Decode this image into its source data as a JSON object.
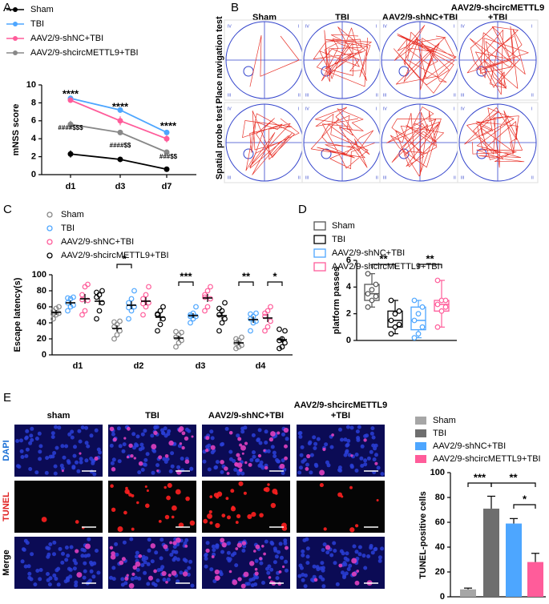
{
  "chart_data": [
    {
      "type": "line",
      "panel": "A",
      "ylabel": "mNSS score",
      "categories": [
        "d1",
        "d3",
        "d7"
      ],
      "ylim": [
        0,
        10
      ],
      "yticks": [
        0,
        2,
        4,
        6,
        8,
        10
      ],
      "series": [
        {
          "name": "Sham",
          "color": "#000000",
          "values": [
            2.3,
            1.7,
            0.6
          ],
          "errors": [
            0.4,
            0.2,
            0.15
          ]
        },
        {
          "name": "TBI",
          "color": "#4da6ff",
          "values": [
            8.5,
            7.2,
            4.7
          ],
          "errors": [
            0.3,
            0.3,
            0.3
          ]
        },
        {
          "name": "AAV2/9-shNC+TBI",
          "color": "#ff5c9a",
          "values": [
            8.3,
            6.0,
            4.0
          ],
          "errors": [
            0.3,
            0.5,
            0.4
          ]
        },
        {
          "name": "AAV2/9-shcircMETTL9+TBI",
          "color": "#888888",
          "values": [
            5.6,
            4.7,
            2.5
          ],
          "errors": [
            0.4,
            0.3,
            0.2
          ]
        }
      ],
      "annotations": [
        "****",
        "****",
        "****",
        "####$$$",
        "####$$",
        "###$$"
      ]
    },
    {
      "type": "dotplot",
      "panel": "C",
      "ylabel": "Escape latency(s)",
      "categories": [
        "d1",
        "d2",
        "d3",
        "d4"
      ],
      "ylim": [
        0,
        100
      ],
      "yticks": [
        0,
        20,
        40,
        60,
        80,
        100
      ],
      "series": [
        {
          "name": "Sham",
          "color": "#888888",
          "values": [
            53,
            33,
            21,
            15
          ],
          "errors": [
            3,
            4,
            3,
            3
          ],
          "points": [
            [
              45,
              50,
              52,
              55,
              58,
              60,
              51
            ],
            [
              20,
              25,
              30,
              35,
              38,
              42,
              41
            ],
            [
              10,
              15,
              18,
              22,
              25,
              28,
              29
            ],
            [
              8,
              10,
              12,
              15,
              18,
              22,
              20
            ]
          ]
        },
        {
          "name": "TBI",
          "color": "#4da6ff",
          "values": [
            65,
            62,
            49,
            44
          ],
          "errors": [
            3,
            5,
            3,
            4
          ],
          "points": [
            [
              55,
              60,
              62,
              65,
              70,
              72,
              71
            ],
            [
              45,
              55,
              60,
              65,
              70,
              80,
              59
            ],
            [
              40,
              45,
              48,
              50,
              52,
              60,
              48
            ],
            [
              30,
              40,
              42,
              45,
              48,
              52,
              51
            ]
          ]
        },
        {
          "name": "AAV2/9-shNC+TBI",
          "color": "#ff5c9a",
          "values": [
            70,
            67,
            71,
            46
          ],
          "errors": [
            6,
            5,
            5,
            5
          ],
          "points": [
            [
              50,
              55,
              68,
              75,
              85,
              88,
              69
            ],
            [
              50,
              60,
              65,
              70,
              75,
              85,
              64
            ],
            [
              55,
              60,
              70,
              75,
              80,
              85,
              72
            ],
            [
              30,
              35,
              42,
              48,
              55,
              60,
              52
            ]
          ]
        },
        {
          "name": "AAV2/9-shcircMETTL9+TBI",
          "color": "#000000",
          "values": [
            67,
            47,
            49,
            19
          ],
          "errors": [
            5,
            5,
            5,
            4
          ],
          "points": [
            [
              45,
              55,
              65,
              72,
              75,
              80,
              78
            ],
            [
              30,
              38,
              45,
              50,
              55,
              60,
              51
            ],
            [
              30,
              40,
              45,
              50,
              55,
              65,
              58
            ],
            [
              8,
              10,
              15,
              18,
              20,
              30,
              32
            ]
          ]
        }
      ],
      "annotations": [
        "*",
        "***",
        "**",
        "*"
      ]
    },
    {
      "type": "box",
      "panel": "D",
      "ylabel": "platform passes",
      "ylim": [
        0,
        6
      ],
      "yticks": [
        0,
        2,
        4,
        6
      ],
      "series": [
        {
          "name": "Sham",
          "color": "#555555",
          "min": 2.5,
          "q1": 3,
          "median": 3.5,
          "q3": 4.2,
          "max": 5,
          "points": [
            2.5,
            3,
            3.3,
            3.5,
            3.8,
            4.2,
            5
          ]
        },
        {
          "name": "TBI",
          "color": "#000000",
          "min": 0.5,
          "q1": 1,
          "median": 1.5,
          "q3": 2.2,
          "max": 3,
          "points": [
            0.5,
            1,
            1.2,
            1.5,
            2,
            2.2,
            3
          ]
        },
        {
          "name": "AAV2/9-shNC+TBI",
          "color": "#4da6ff",
          "min": 0.2,
          "q1": 0.8,
          "median": 1.5,
          "q3": 2.5,
          "max": 3,
          "points": [
            0.2,
            0.5,
            1,
            1.5,
            2,
            2.5,
            3
          ]
        },
        {
          "name": "AAV2/9-shcircMETTL9+TBI",
          "color": "#ff5c9a",
          "min": 1,
          "q1": 2.2,
          "median": 2.7,
          "q3": 3,
          "max": 4.5,
          "points": [
            1,
            2.2,
            2.5,
            2.7,
            3,
            3,
            4.5
          ]
        }
      ],
      "annotations": [
        "**",
        "**"
      ]
    },
    {
      "type": "bar",
      "ylabel": "TUNEL-positive cells",
      "ylim": [
        0,
        100
      ],
      "yticks": [
        0,
        20,
        40,
        60,
        80,
        100
      ],
      "series": [
        {
          "name": "Sham",
          "color": "#a6a6a6",
          "values": [
            6
          ],
          "errors": [
            1
          ]
        },
        {
          "name": "TBI",
          "color": "#6e6e6e",
          "values": [
            71
          ],
          "errors": [
            10
          ]
        },
        {
          "name": "AAV2/9-shNC+TBI",
          "color": "#4da6ff",
          "values": [
            59
          ],
          "errors": [
            4
          ]
        },
        {
          "name": "AAV2/9-shcircMETTL9+TBI",
          "color": "#ff5c9a",
          "values": [
            28
          ],
          "errors": [
            7
          ]
        }
      ],
      "annotations": [
        "***",
        "**",
        "*"
      ]
    }
  ],
  "figure": {
    "B": {
      "panel": "B",
      "columns": [
        "Sham",
        "TBI",
        "AAV2/9-shNC+TBI",
        [
          "AAV2/9-shcircMETTL9",
          "+TBI"
        ]
      ],
      "rows": [
        "Place navigation test",
        "Spatial probe test"
      ],
      "quadrants": [
        "IV",
        "I",
        "III",
        "II"
      ]
    },
    "E": {
      "panel": "E",
      "columns": [
        "sham",
        "TBI",
        "AAV2/9-shNC+TBI",
        [
          "AAV2/9-shcircMETTL9",
          "+TBI"
        ]
      ],
      "rows": [
        "DAPI",
        "TUNEL",
        "Merge"
      ]
    }
  }
}
